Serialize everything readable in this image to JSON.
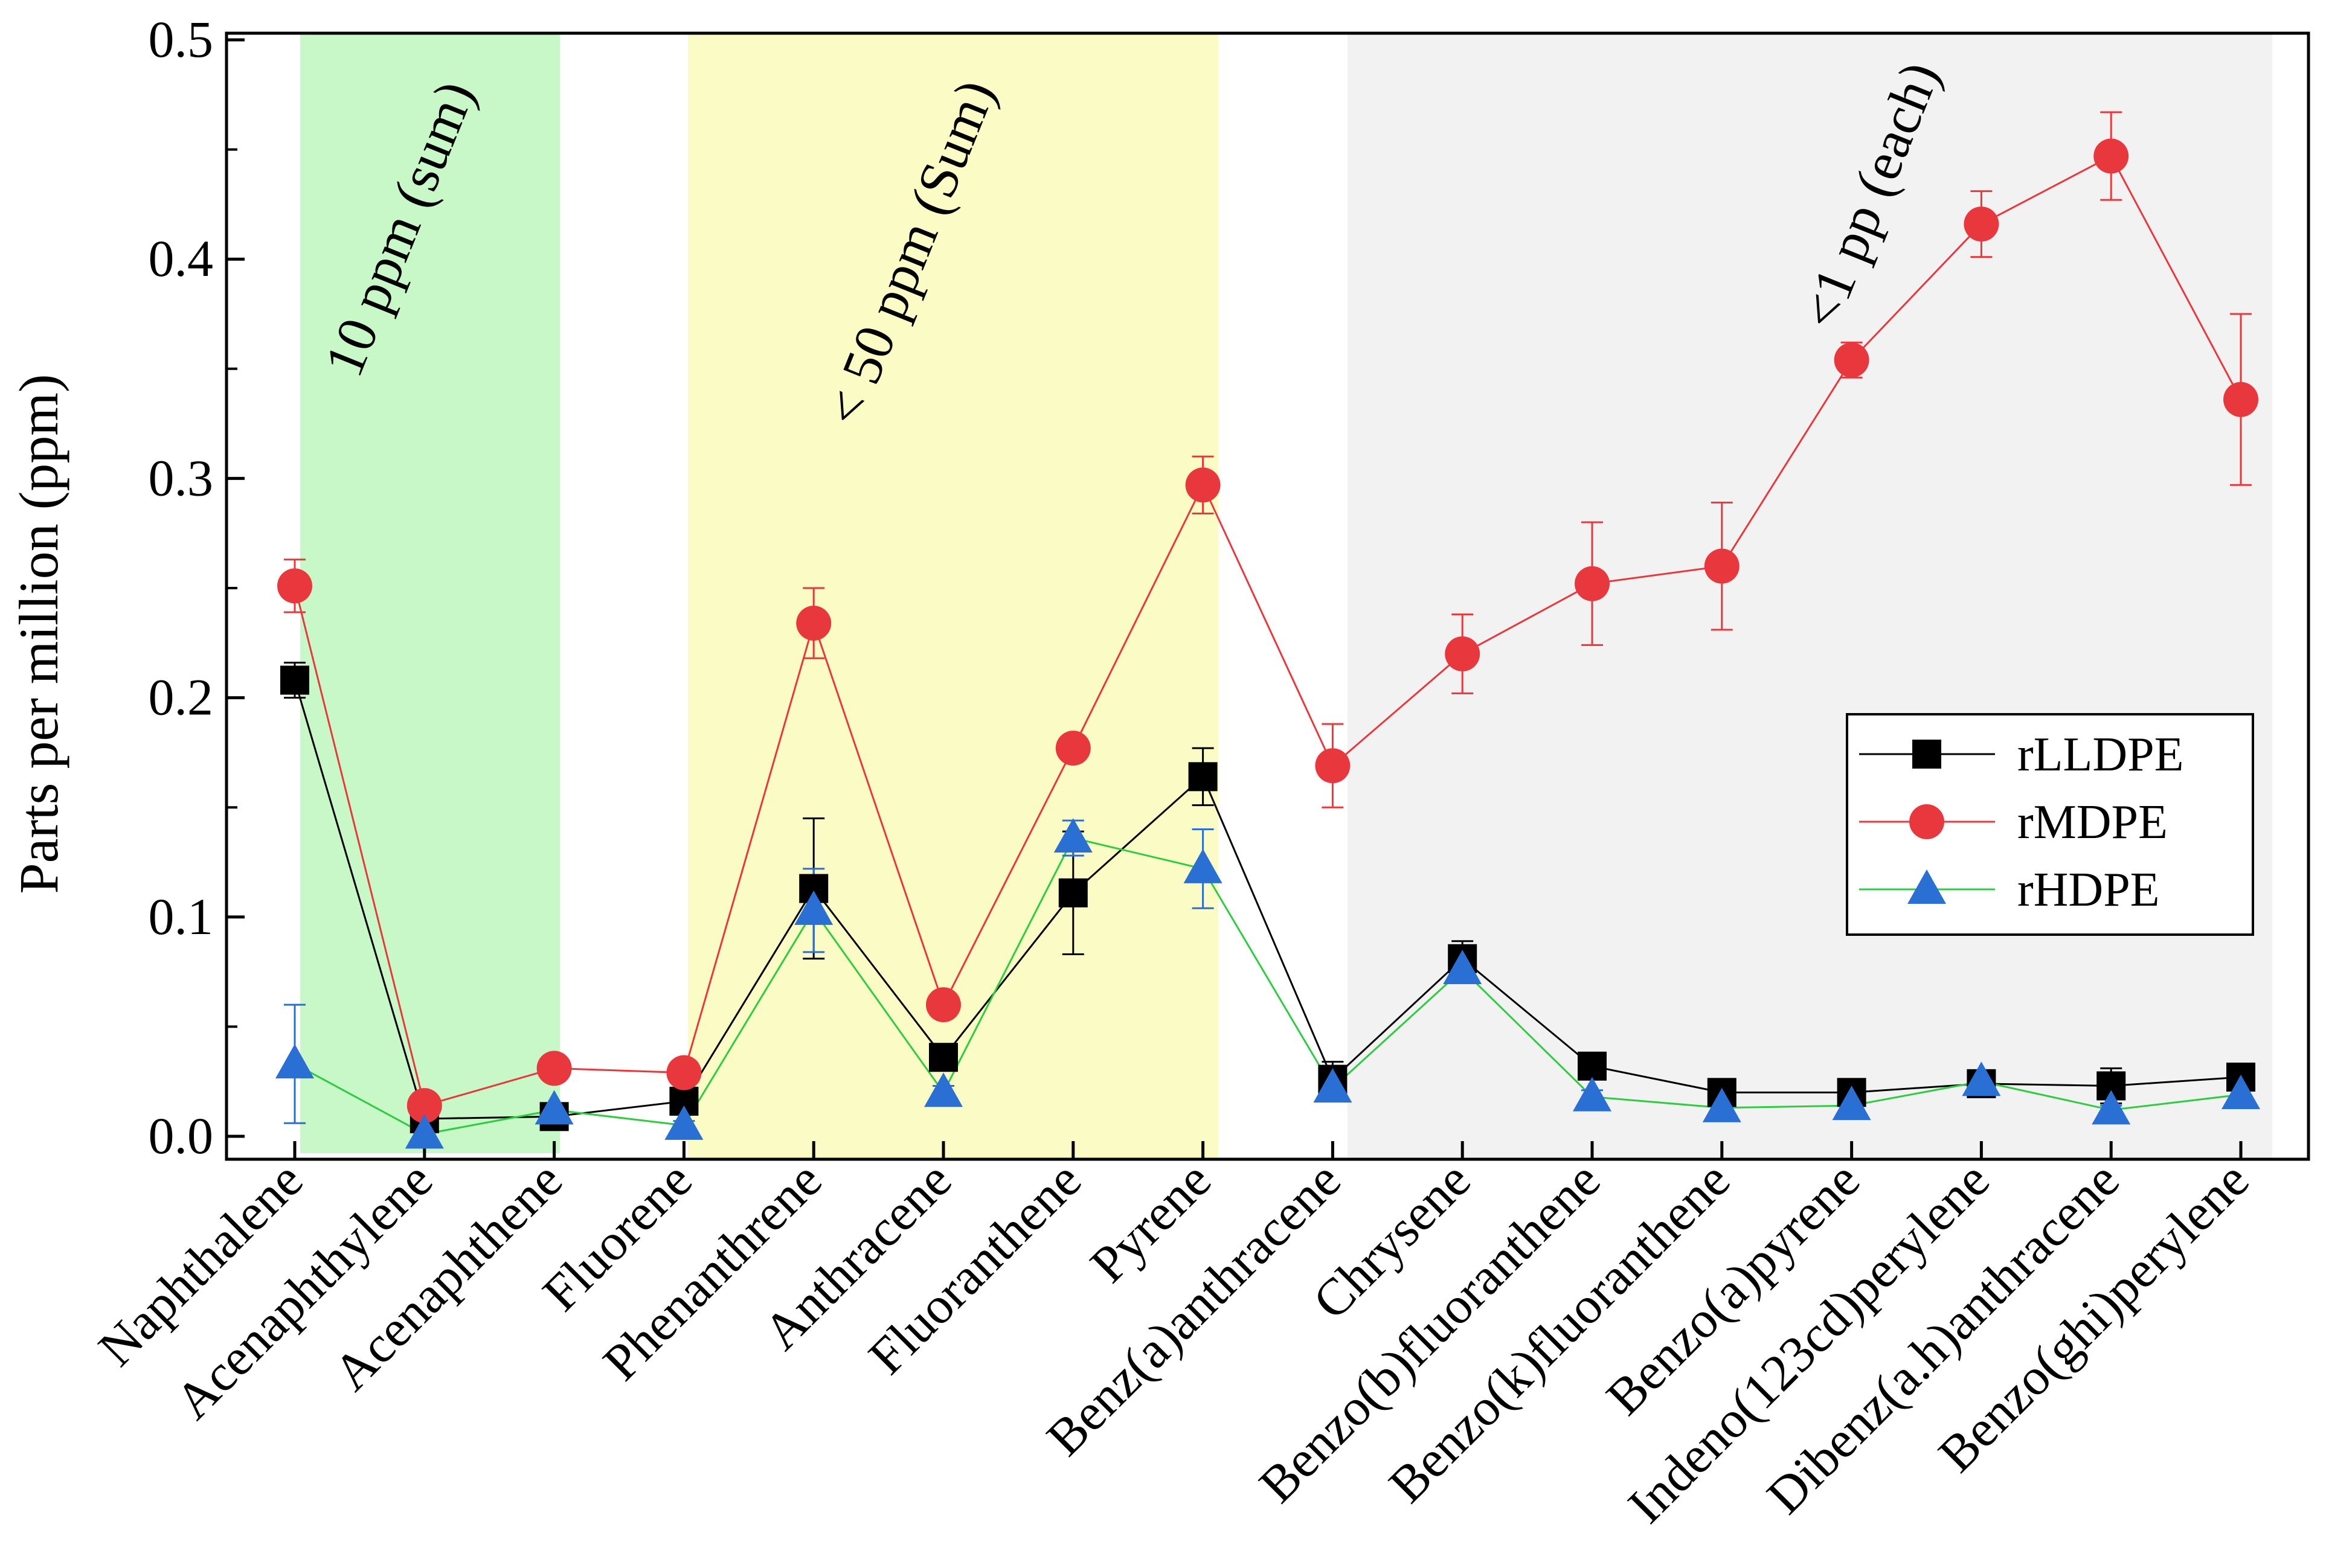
{
  "chart_data": {
    "type": "line",
    "title": "",
    "xlabel": "",
    "ylabel": "Parts per million (ppm)",
    "ylim": [
      0.0,
      0.5
    ],
    "yticks": [
      "0.0",
      "0.1",
      "0.2",
      "0.3",
      "0.4",
      "0.5"
    ],
    "grid": false,
    "legend_position": "right",
    "categories": [
      "Naphthalene",
      "Acenaphthylene",
      "Acenaphthene",
      "Fluorene",
      "Phenanthrene",
      "Anthracene",
      "Fluoranthene",
      "Pyrene",
      "Benz(a)anthracene",
      "Chrysene",
      "Benzo(b)fluoranthene",
      "Benzo(k)fluoranthene",
      "Benzo(a)pyrene",
      "Indeno(123cd)perylene",
      "Dibenz(a.h)anthracene",
      "Benzo(ghi)perylene"
    ],
    "series": [
      {
        "name": "rLLDPE",
        "color": "#000000",
        "marker": "square",
        "values": [
          0.208,
          0.008,
          0.009,
          0.016,
          0.113,
          0.036,
          0.111,
          0.164,
          0.026,
          0.081,
          0.032,
          0.02,
          0.02,
          0.024,
          0.023,
          0.027
        ],
        "errors": [
          0.008,
          0.004,
          0.003,
          0.004,
          0.032,
          0.004,
          0.028,
          0.013,
          0.008,
          0.008,
          0.003,
          0.003,
          0.003,
          0.003,
          0.008,
          0.003
        ]
      },
      {
        "name": "rMDPE",
        "color": "#e8383d",
        "marker": "circle",
        "values": [
          0.251,
          0.014,
          0.031,
          0.029,
          0.234,
          0.06,
          0.177,
          0.297,
          0.169,
          0.22,
          0.252,
          0.26,
          0.354,
          0.416,
          0.447,
          0.336
        ],
        "errors": [
          0.012,
          0.004,
          0.003,
          0.003,
          0.016,
          0.003,
          0.003,
          0.013,
          0.019,
          0.018,
          0.028,
          0.029,
          0.008,
          0.015,
          0.02,
          0.039
        ]
      },
      {
        "name": "rHDPE",
        "color": "#2a6fd4",
        "marker": "triangle",
        "line_color": "#2ecc40",
        "values": [
          0.033,
          0.001,
          0.012,
          0.005,
          0.103,
          0.02,
          0.136,
          0.122,
          0.022,
          0.076,
          0.018,
          0.013,
          0.014,
          0.025,
          0.012,
          0.019
        ],
        "errors": [
          0.027,
          0.002,
          0.002,
          0.002,
          0.019,
          0.003,
          0.008,
          0.018,
          0.004,
          0.006,
          0.003,
          0.002,
          0.002,
          0.003,
          0.002,
          0.003
        ]
      }
    ],
    "shaded_regions": [
      {
        "from": "Naphthalene",
        "to": "Acenaphthene",
        "color": "#c8f7c8",
        "label": "10 ppm (sum)"
      },
      {
        "from": "Fluorene",
        "to": "Pyrene",
        "color": "#fbfbc6",
        "label": "< 50 ppm (Sum)"
      },
      {
        "from": "Benz(a)anthracene",
        "to": "Benzo(ghi)perylene",
        "color": "#f2f2f2",
        "label": "<1 pp (each)"
      }
    ]
  }
}
